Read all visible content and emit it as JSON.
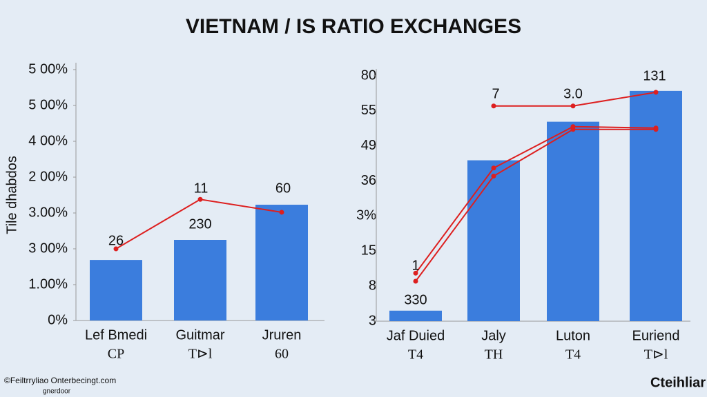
{
  "title": "VIETNAM / IS RATIO EXCHANGES",
  "footer": {
    "left": "©Feiltrryliao Onterbecingt.com",
    "left_sub": "gnerdoor",
    "right": "Cteihliar"
  },
  "chart_data": [
    {
      "type": "bar",
      "y_label": "Tile dhabdos",
      "categories": [
        "Lef Bmedi",
        "Guitmar",
        "Jruren"
      ],
      "subcategories": [
        "CP",
        "T⊳l",
        "60"
      ],
      "ylim": [
        0,
        7
      ],
      "yticks": [
        {
          "value": 0,
          "label": "0%"
        },
        {
          "value": 1,
          "label": "1.00%"
        },
        {
          "value": 2,
          "label": "3 00%"
        },
        {
          "value": 3,
          "label": "3.00%"
        },
        {
          "value": 4,
          "label": "2 00%"
        },
        {
          "value": 5,
          "label": "4 00%"
        },
        {
          "value": 6,
          "label": "5 00%"
        },
        {
          "value": 7,
          "label": "5 00%"
        }
      ],
      "series": [
        {
          "kind": "bar",
          "color": "#3b7ddd",
          "values": [
            1.69,
            2.25,
            3.23
          ]
        },
        {
          "kind": "line",
          "color": "#dd1f1f",
          "values": [
            2.0,
            3.38,
            3.02
          ]
        }
      ],
      "annotations": [
        "26",
        "11",
        "60",
        "230"
      ]
    },
    {
      "type": "bar",
      "categories": [
        "Jaf Duied",
        "Jaly",
        "Luton",
        "Euriend"
      ],
      "subcategories": [
        "T4",
        "TH",
        "T4",
        "T⊳l"
      ],
      "ylim": [
        0,
        7
      ],
      "yticks": [
        {
          "value": 0,
          "label": "3"
        },
        {
          "value": 1,
          "label": "8"
        },
        {
          "value": 2,
          "label": "15"
        },
        {
          "value": 3,
          "label": "3%"
        },
        {
          "value": 4,
          "label": "36"
        },
        {
          "value": 5,
          "label": "49"
        },
        {
          "value": 6,
          "label": "55"
        },
        {
          "value": 7,
          "label": "80"
        }
      ],
      "series": [
        {
          "kind": "bar",
          "color": "#3b7ddd",
          "values": [
            0.3,
            4.59,
            5.69,
            6.57
          ]
        },
        {
          "kind": "line",
          "color": "#dd1f1f",
          "values": [
            null,
            6.14,
            6.14,
            6.53
          ]
        },
        {
          "kind": "line",
          "color": "#dd1f1f",
          "values": [
            1.37,
            4.37,
            5.55,
            5.51
          ]
        },
        {
          "kind": "line",
          "color": "#dd1f1f",
          "values": [
            1.14,
            4.14,
            5.47,
            5.47
          ]
        }
      ],
      "annotations": [
        "1",
        "7",
        "3.0",
        "131",
        "330"
      ]
    }
  ]
}
